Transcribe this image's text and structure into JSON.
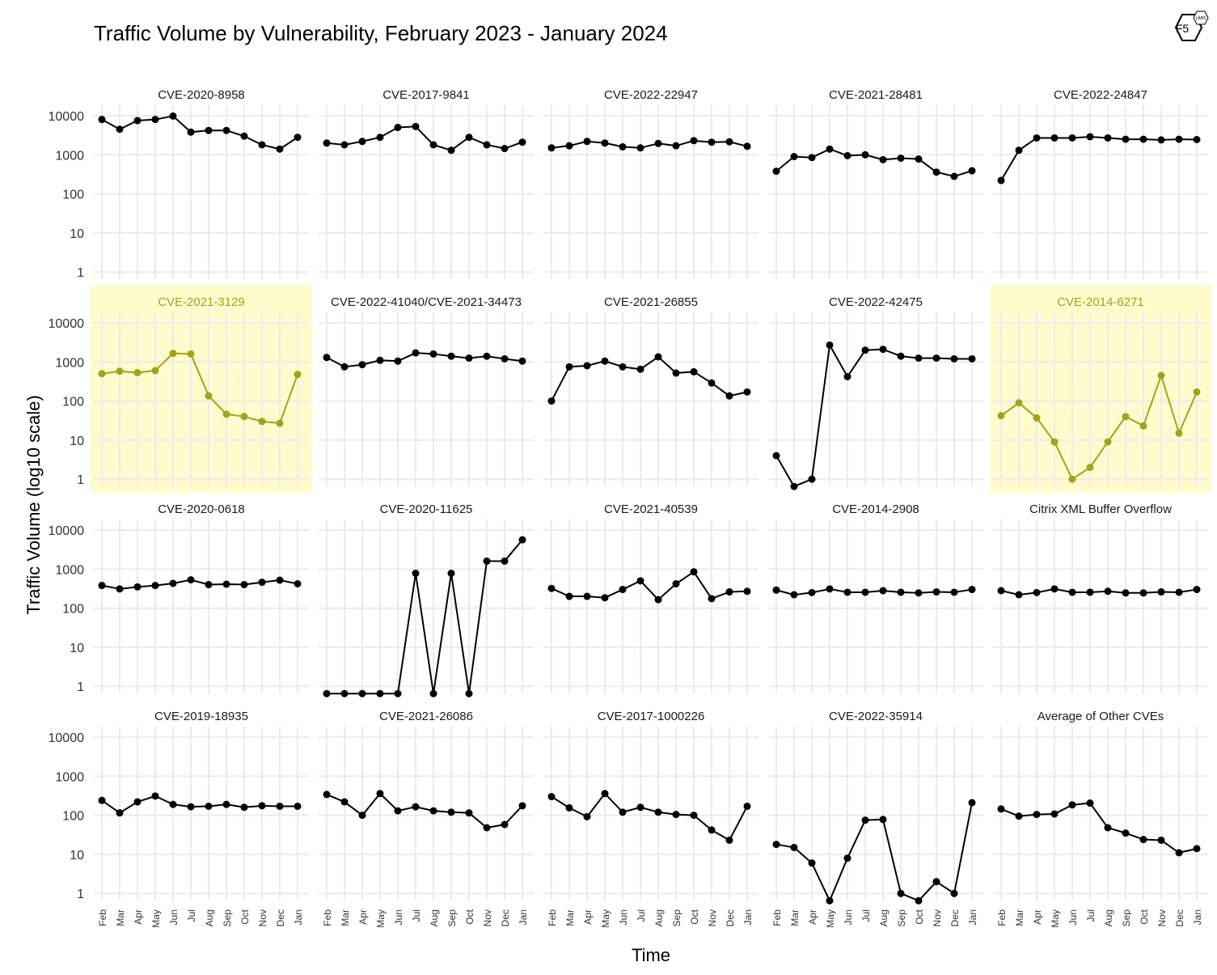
{
  "title": "Traffic Volume by Vulnerability, February 2023 - January 2024",
  "logo_text": "F5",
  "logo_sub": "LABS",
  "colors": {
    "normal": "#000000",
    "highlight": "#a3a31a",
    "highlight_bg": "#fffbcc",
    "grid": "#ebebeb"
  },
  "chart_data": {
    "type": "line",
    "scale": "log10",
    "xlabel": "Time",
    "ylabel": "Traffic Volume (log10 scale)",
    "x": [
      "Feb",
      "Mar",
      "Apr",
      "May",
      "Jun",
      "Jul",
      "Aug",
      "Sep",
      "Oct",
      "Nov",
      "Dec",
      "Jan"
    ],
    "y_ticks": [
      1,
      10,
      100,
      1000,
      10000
    ],
    "ylim": [
      0.6,
      20000
    ],
    "grid": true,
    "series": [
      {
        "name": "CVE-2020-8958",
        "highlight": false,
        "values": [
          8000,
          4500,
          7500,
          8000,
          9800,
          3800,
          4200,
          4200,
          3000,
          1800,
          1400,
          2800
        ]
      },
      {
        "name": "CVE-2017-9841",
        "highlight": false,
        "values": [
          2000,
          1800,
          2200,
          2800,
          5000,
          5300,
          1800,
          1300,
          2800,
          1800,
          1450,
          2100
        ]
      },
      {
        "name": "CVE-2022-22947",
        "highlight": false,
        "values": [
          1500,
          1700,
          2200,
          2000,
          1600,
          1500,
          1950,
          1700,
          2300,
          2100,
          2150,
          1650
        ]
      },
      {
        "name": "CVE-2021-28481",
        "highlight": false,
        "values": [
          380,
          900,
          850,
          1400,
          950,
          1000,
          750,
          820,
          780,
          360,
          280,
          390
        ]
      },
      {
        "name": "CVE-2022-24847",
        "highlight": false,
        "values": [
          220,
          1300,
          2700,
          2700,
          2700,
          2900,
          2700,
          2500,
          2500,
          2400,
          2500,
          2450
        ]
      },
      {
        "name": "CVE-2021-3129",
        "highlight": true,
        "values": [
          500,
          580,
          530,
          600,
          1650,
          1600,
          135,
          46,
          40,
          30,
          27,
          480
        ]
      },
      {
        "name": "CVE-2022-41040/CVE-2021-34473",
        "highlight": false,
        "values": [
          1300,
          750,
          850,
          1100,
          1050,
          1700,
          1600,
          1400,
          1250,
          1400,
          1200,
          1050
        ]
      },
      {
        "name": "CVE-2021-26855",
        "highlight": false,
        "values": [
          100,
          750,
          800,
          1050,
          750,
          650,
          1350,
          520,
          560,
          290,
          135,
          170
        ]
      },
      {
        "name": "CVE-2022-42475",
        "highlight": false,
        "values": [
          4,
          0.65,
          1,
          2700,
          420,
          2000,
          2100,
          1400,
          1250,
          1250,
          1200,
          1200
        ]
      },
      {
        "name": "CVE-2014-6271",
        "highlight": true,
        "values": [
          42,
          90,
          37,
          9,
          1,
          2,
          9,
          40,
          23,
          450,
          15,
          170
        ]
      },
      {
        "name": "CVE-2020-0618",
        "highlight": false,
        "values": [
          380,
          310,
          350,
          380,
          430,
          530,
          400,
          410,
          400,
          460,
          520,
          420
        ]
      },
      {
        "name": "CVE-2020-11625",
        "highlight": false,
        "values": [
          0.65,
          0.65,
          0.65,
          0.65,
          0.65,
          780,
          0.65,
          780,
          0.65,
          1600,
          1600,
          5600
        ]
      },
      {
        "name": "CVE-2021-40539",
        "highlight": false,
        "values": [
          320,
          200,
          200,
          185,
          300,
          500,
          165,
          420,
          850,
          175,
          260,
          270
        ]
      },
      {
        "name": "CVE-2014-2908",
        "highlight": false,
        "values": [
          290,
          220,
          250,
          310,
          255,
          255,
          280,
          255,
          245,
          260,
          255,
          300
        ]
      },
      {
        "name": "Citrix XML Buffer Overflow",
        "highlight": false,
        "values": [
          280,
          220,
          250,
          310,
          255,
          255,
          270,
          245,
          245,
          260,
          255,
          300
        ]
      },
      {
        "name": "CVE-2019-18935",
        "highlight": false,
        "values": [
          240,
          115,
          220,
          310,
          190,
          165,
          170,
          190,
          160,
          175,
          170,
          170
        ]
      },
      {
        "name": "CVE-2021-26086",
        "highlight": false,
        "values": [
          340,
          220,
          100,
          360,
          130,
          165,
          130,
          120,
          115,
          48,
          58,
          175
        ]
      },
      {
        "name": "CVE-2017-1000226",
        "highlight": false,
        "values": [
          300,
          155,
          92,
          360,
          120,
          160,
          120,
          105,
          100,
          42,
          23,
          170
        ]
      },
      {
        "name": "CVE-2022-35914",
        "highlight": false,
        "values": [
          18,
          15,
          6,
          0.65,
          8,
          75,
          78,
          1,
          0.65,
          2,
          1,
          210
        ]
      },
      {
        "name": "Average of Other CVEs",
        "highlight": false,
        "values": [
          145,
          95,
          105,
          108,
          185,
          205,
          48,
          35,
          24,
          23,
          11,
          14
        ]
      }
    ]
  }
}
